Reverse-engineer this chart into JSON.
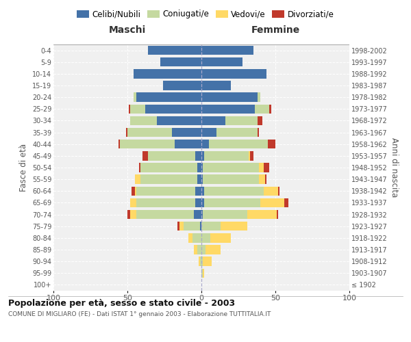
{
  "age_groups": [
    "100+",
    "95-99",
    "90-94",
    "85-89",
    "80-84",
    "75-79",
    "70-74",
    "65-69",
    "60-64",
    "55-59",
    "50-54",
    "45-49",
    "40-44",
    "35-39",
    "30-34",
    "25-29",
    "20-24",
    "15-19",
    "10-14",
    "5-9",
    "0-4"
  ],
  "birth_years": [
    "≤ 1902",
    "1903-1907",
    "1908-1912",
    "1913-1917",
    "1918-1922",
    "1923-1927",
    "1928-1932",
    "1933-1937",
    "1938-1942",
    "1943-1947",
    "1948-1952",
    "1953-1957",
    "1958-1962",
    "1963-1967",
    "1968-1972",
    "1973-1977",
    "1978-1982",
    "1983-1987",
    "1988-1992",
    "1993-1997",
    "1998-2002"
  ],
  "males": {
    "celibi": [
      0,
      0,
      0,
      0,
      0,
      1,
      5,
      4,
      4,
      3,
      3,
      4,
      18,
      20,
      30,
      38,
      44,
      26,
      46,
      28,
      36
    ],
    "coniugati": [
      0,
      0,
      1,
      3,
      6,
      11,
      39,
      40,
      40,
      38,
      38,
      32,
      37,
      30,
      18,
      10,
      2,
      0,
      0,
      0,
      0
    ],
    "vedovi": [
      0,
      0,
      1,
      2,
      3,
      3,
      4,
      4,
      1,
      4,
      0,
      0,
      0,
      0,
      0,
      0,
      0,
      0,
      0,
      0,
      0
    ],
    "divorziati": [
      0,
      0,
      0,
      0,
      0,
      1,
      2,
      0,
      2,
      0,
      1,
      4,
      1,
      1,
      0,
      1,
      0,
      0,
      0,
      0,
      0
    ]
  },
  "females": {
    "nubili": [
      0,
      0,
      0,
      0,
      0,
      0,
      1,
      2,
      2,
      1,
      1,
      2,
      5,
      10,
      16,
      36,
      38,
      20,
      44,
      28,
      35
    ],
    "coniugate": [
      0,
      1,
      1,
      3,
      6,
      13,
      30,
      38,
      40,
      38,
      38,
      30,
      40,
      28,
      22,
      10,
      2,
      0,
      0,
      0,
      0
    ],
    "vedove": [
      0,
      1,
      6,
      10,
      14,
      18,
      20,
      16,
      10,
      4,
      3,
      1,
      0,
      0,
      0,
      0,
      0,
      0,
      0,
      0,
      0
    ],
    "divorziate": [
      0,
      0,
      0,
      0,
      0,
      0,
      1,
      3,
      1,
      1,
      4,
      2,
      5,
      1,
      3,
      1,
      0,
      0,
      0,
      0,
      0
    ]
  },
  "colors": {
    "celibi": "#4472a8",
    "coniugati": "#c5d9a0",
    "vedovi": "#ffd966",
    "divorziati": "#c0392b"
  },
  "title": "Popolazione per età, sesso e stato civile - 2003",
  "subtitle": "COMUNE DI MIGLIARO (FE) - Dati ISTAT 1° gennaio 2003 - Elaborazione TUTTITALIA.IT",
  "ylabel": "Fasce di età",
  "ylabel_right": "Anni di nascita",
  "xlabel_left": "Maschi",
  "xlabel_right": "Femmine",
  "xlim": 100,
  "legend_labels": [
    "Celibi/Nubili",
    "Coniugati/e",
    "Vedovi/e",
    "Divorziati/e"
  ],
  "bg_color": "#f0f0f0"
}
